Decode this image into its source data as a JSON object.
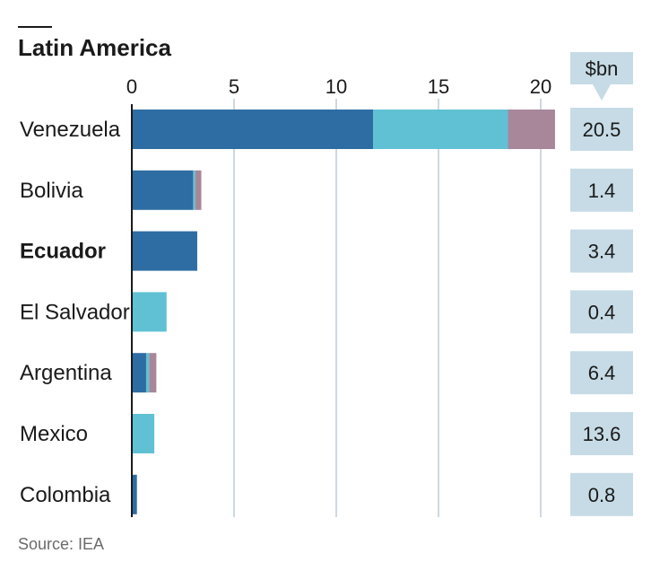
{
  "chart_data": {
    "type": "bar",
    "orientation": "horizontal",
    "stacked": true,
    "title": "Latin America",
    "categories": [
      "Venezuela",
      "Bolivia",
      "Ecuador",
      "El Salvador",
      "Argentina",
      "Mexico",
      "Colombia"
    ],
    "bold_categories": [
      "Ecuador"
    ],
    "xlim": [
      0,
      21
    ],
    "xticks": [
      0,
      5,
      10,
      15,
      20
    ],
    "grid": true,
    "series": [
      {
        "color": "#2e6da4",
        "values": [
          11.8,
          3.0,
          3.2,
          0.0,
          0.7,
          0.0,
          0.25
        ]
      },
      {
        "color": "#5fc1d3",
        "values": [
          6.6,
          0.1,
          0.0,
          1.7,
          0.15,
          1.1,
          0.0
        ]
      },
      {
        "color": "#a8879a",
        "values": [
          2.3,
          0.3,
          0.0,
          0.0,
          0.35,
          0.0,
          0.0
        ]
      }
    ],
    "side_column": {
      "unit_label": "$bn",
      "values": [
        "20.5",
        "1.4",
        "3.4",
        "0.4",
        "6.4",
        "13.6",
        "0.8"
      ],
      "box_color": "#c6dbe6"
    },
    "source": "Source: IEA"
  }
}
